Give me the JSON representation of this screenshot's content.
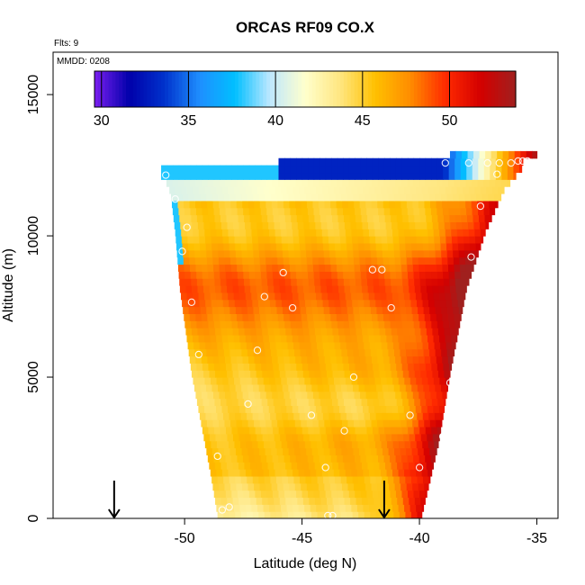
{
  "chart_data": {
    "type": "heatmap",
    "title": "ORCAS RF09 CO.X",
    "notes": {
      "flights": "Flts: 9",
      "date": "MMDD: 0208"
    },
    "xlabel": "Latitude (deg N)",
    "ylabel": "Altitude (m)",
    "xlim": [
      -55.6,
      -34.1
    ],
    "ylim": [
      0,
      16500
    ],
    "x_ticks": [
      -50,
      -45,
      -40,
      -35
    ],
    "x_tick_labels": [
      "-50",
      "-45",
      "-40",
      "-35"
    ],
    "y_ticks": [
      0,
      5000,
      10000,
      15000
    ],
    "y_tick_labels": [
      "0",
      "5000",
      "10000",
      "15000"
    ],
    "colorbar": {
      "min": 29.6,
      "max": 53.8,
      "ticks": [
        30,
        35,
        40,
        45,
        50
      ],
      "tick_labels": [
        "30",
        "35",
        "40",
        "45",
        "50"
      ],
      "placement": "top-inset",
      "colors": [
        "#7a1ff0",
        "#0000aa",
        "#0033cc",
        "#1f8fff",
        "#00bfff",
        "#bfe8ff",
        "#ffffcc",
        "#ffe680",
        "#ffc000",
        "#ff8c00",
        "#ff2a00",
        "#d40000",
        "#a0201e"
      ]
    },
    "field_extent": {
      "left_edge": [
        [
          -48.6,
          0
        ],
        [
          -48.9,
          1500
        ],
        [
          -49.7,
          5000
        ],
        [
          -50.2,
          8000
        ],
        [
          -50.4,
          10000
        ],
        [
          -50.6,
          11400
        ],
        [
          -51.0,
          12200
        ]
      ],
      "right_edge": [
        [
          -39.9,
          0
        ],
        [
          -39.2,
          2500
        ],
        [
          -38.7,
          5000
        ],
        [
          -38.0,
          8000
        ],
        [
          -37.2,
          10000
        ],
        [
          -36.4,
          11500
        ],
        [
          -35.2,
          12700
        ]
      ],
      "top_left": [
        -51.0,
        12300
      ],
      "step_lat": -46.0,
      "top_right": [
        -38.1,
        12700
      ]
    },
    "grid": false,
    "series": [
      {
        "type": "scatter",
        "points": [
          [
            -50.8,
            12150
          ],
          [
            -50.4,
            11300
          ],
          [
            -49.9,
            10300
          ],
          [
            -50.1,
            9450
          ],
          [
            -49.7,
            7650
          ],
          [
            -49.4,
            5800
          ],
          [
            -48.6,
            2200
          ],
          [
            -48.4,
            300
          ],
          [
            -48.1,
            400
          ],
          [
            -47.3,
            4050
          ],
          [
            -46.9,
            5950
          ],
          [
            -46.6,
            7850
          ],
          [
            -45.8,
            8700
          ],
          [
            -45.4,
            7450
          ],
          [
            -44.6,
            3650
          ],
          [
            -44.0,
            1800
          ],
          [
            -43.9,
            100
          ],
          [
            -43.7,
            100
          ],
          [
            -42.8,
            5000
          ],
          [
            -43.2,
            3100
          ],
          [
            -42.0,
            8800
          ],
          [
            -41.6,
            8800
          ],
          [
            -41.2,
            7450
          ],
          [
            -40.4,
            3650
          ],
          [
            -40.0,
            1800
          ],
          [
            -39.0,
            2900
          ],
          [
            -38.7,
            4800
          ],
          [
            -37.8,
            9250
          ],
          [
            -37.4,
            11050
          ],
          [
            -38.9,
            12580
          ],
          [
            -37.9,
            12580
          ],
          [
            -37.1,
            12580
          ],
          [
            -36.7,
            12180
          ],
          [
            -36.6,
            12580
          ],
          [
            -36.1,
            12580
          ],
          [
            -35.8,
            12650
          ],
          [
            -35.6,
            12650
          ],
          [
            -35.4,
            12650
          ]
        ]
      }
    ],
    "annotations": [
      {
        "type": "arrow-down",
        "x": -53.0,
        "y_top": 700,
        "y_bottom": 0
      },
      {
        "type": "arrow-down",
        "x": -41.5,
        "y_top": 700,
        "y_bottom": 0
      }
    ]
  }
}
